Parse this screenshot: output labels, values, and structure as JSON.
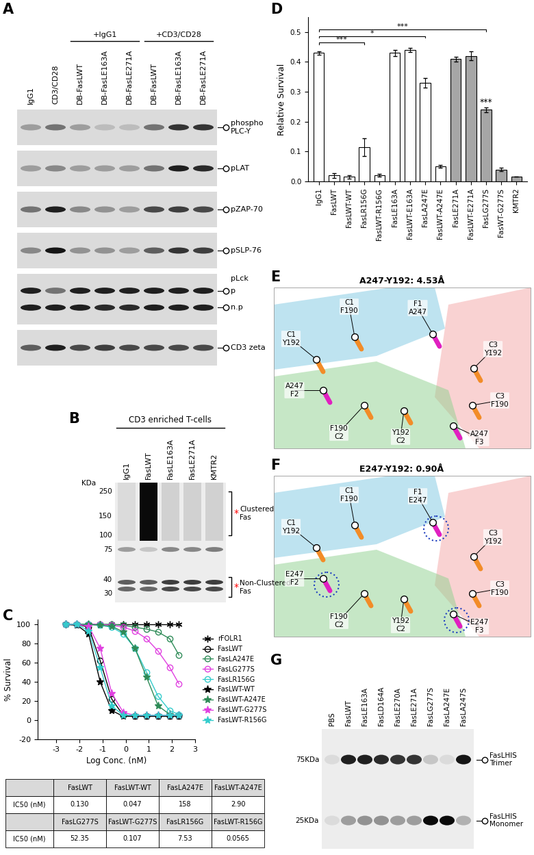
{
  "panel_letters": [
    "A",
    "B",
    "C",
    "D",
    "E",
    "F",
    "G"
  ],
  "A": {
    "lanes": [
      "IgG1",
      "CD3/CD28",
      "DB-FasLWT",
      "DB-FasLE163A",
      "DB-FasLE271A",
      "DB-FasLWT",
      "DB-FasLE163A",
      "DB-FasLE271A"
    ],
    "groups": [
      {
        "label": "+IgG1",
        "lanes": [
          2,
          4
        ]
      },
      {
        "label": "+CD3/CD28",
        "lanes": [
          5,
          7
        ]
      }
    ],
    "rows": [
      {
        "label": "phospho\nPLC-Y",
        "intensity": [
          0.3,
          0.5,
          0.3,
          0.15,
          0.15,
          0.5,
          0.8,
          0.8
        ]
      },
      {
        "label": "pLAT",
        "intensity": [
          0.3,
          0.4,
          0.3,
          0.3,
          0.3,
          0.5,
          0.9,
          0.85
        ]
      },
      {
        "label": "pZAP-70",
        "intensity": [
          0.5,
          0.9,
          0.4,
          0.35,
          0.3,
          0.7,
          0.75,
          0.7
        ]
      },
      {
        "label": "pSLP-76",
        "intensity": [
          0.4,
          0.95,
          0.35,
          0.35,
          0.3,
          0.6,
          0.8,
          0.75
        ]
      },
      {
        "label": "pLck",
        "bands": [
          {
            "name": "p",
            "intensity": [
              0.9,
              0.5,
              0.9,
              0.9,
              0.9,
              0.9,
              0.9,
              0.9
            ]
          },
          {
            "name": "n.p",
            "intensity": [
              0.9,
              0.9,
              0.9,
              0.85,
              0.85,
              0.9,
              0.9,
              0.9
            ]
          }
        ]
      },
      {
        "label": "CD3 zeta",
        "intensity": [
          0.6,
          0.9,
          0.7,
          0.75,
          0.7,
          0.7,
          0.7,
          0.7
        ]
      }
    ]
  },
  "B": {
    "title": "CD3 enriched T-cells",
    "lanes": [
      "IgG1",
      "FasLWT",
      "FasLE163A",
      "FasLE271A",
      "KMTR2"
    ],
    "marker_title": "KDa",
    "markers": [
      250,
      150,
      100,
      75,
      40,
      30
    ],
    "bands": [
      {
        "kda_hi": 300,
        "kda_lo": 90,
        "intensity": [
          0,
          1,
          0.05,
          0.05,
          0.05
        ]
      },
      {
        "kda": 75,
        "intensity": [
          0.3,
          0.1,
          0.4,
          0.4,
          0.45
        ]
      },
      {
        "kda": 38,
        "intensity": [
          0.6,
          0.6,
          0.75,
          0.75,
          0.75
        ]
      },
      {
        "kda": 33,
        "intensity": [
          0.55,
          0.55,
          0.7,
          0.7,
          0.7
        ]
      }
    ],
    "brackets": [
      {
        "label": "Clustered\nFas",
        "mark": "*",
        "kda_hi": 250,
        "kda_lo": 100
      },
      {
        "label": "Non-Clustered\nFas",
        "mark": "*",
        "kda_hi": 42,
        "kda_lo": 28
      }
    ]
  },
  "C_table": {
    "rows": [
      [
        "",
        "FasLWT",
        "FasLWT-WT",
        "FasLA247E",
        "FasLWT-A247E"
      ],
      [
        "IC50 (nM)",
        "0.130",
        "0.047",
        "158",
        "2.90"
      ],
      [
        "",
        "FasLG277S",
        "FasLWT-G277S",
        "FasLR156G",
        "FasLWT-R156G"
      ],
      [
        "IC50 (nM)",
        "52.35",
        "0.107",
        "7.53",
        "0.0565"
      ]
    ]
  },
  "chart_data": [
    {
      "type": "line",
      "xlabel": "Log Conc. (nM)",
      "ylabel": "% Survival",
      "xlim": [
        -3.8,
        3
      ],
      "xticks": [
        -3,
        -2,
        -1,
        0,
        1,
        2,
        3
      ],
      "ylim": [
        -20,
        105
      ],
      "yticks": [
        -20,
        0,
        20,
        40,
        60,
        80,
        100
      ],
      "legend": "right",
      "x": [
        -2.6,
        -2.1,
        -1.6,
        -1.1,
        -0.6,
        -0.1,
        0.4,
        0.9,
        1.4,
        1.9,
        2.3
      ],
      "series": [
        {
          "name": "rFOLR1",
          "color": "#000000",
          "marker": "asterisk",
          "values": [
            100,
            100,
            100,
            100,
            100,
            100,
            100,
            100,
            100,
            100,
            100
          ]
        },
        {
          "name": "FasLWT",
          "color": "#000000",
          "marker": "open_circle",
          "values": [
            100,
            100,
            97,
            62,
            22,
            5,
            4,
            4,
            4,
            4,
            4
          ]
        },
        {
          "name": "FasLA247E",
          "color": "#2e8b57",
          "marker": "open_circle",
          "values": [
            100,
            100,
            100,
            100,
            100,
            99,
            97,
            95,
            92,
            85,
            68
          ]
        },
        {
          "name": "FasLG277S",
          "color": "#e040e0",
          "marker": "open_circle",
          "values": [
            100,
            100,
            100,
            100,
            99,
            97,
            93,
            85,
            72,
            55,
            38
          ]
        },
        {
          "name": "FasLR156G",
          "color": "#33cccc",
          "marker": "open_circle",
          "values": [
            100,
            100,
            100,
            99,
            97,
            90,
            75,
            50,
            25,
            10,
            6
          ]
        },
        {
          "name": "FasLWT-WT",
          "color": "#000000",
          "marker": "star",
          "values": [
            100,
            99,
            90,
            40,
            10,
            4,
            4,
            4,
            4,
            4,
            4
          ]
        },
        {
          "name": "FasLWT-A247E",
          "color": "#2e8b57",
          "marker": "star",
          "values": [
            100,
            100,
            100,
            99,
            98,
            92,
            75,
            45,
            15,
            6,
            5
          ]
        },
        {
          "name": "FasLWT-G277S",
          "color": "#e040e0",
          "marker": "star",
          "values": [
            100,
            100,
            98,
            75,
            28,
            8,
            5,
            5,
            5,
            5,
            5
          ]
        },
        {
          "name": "FasLWT-R156G",
          "color": "#33cccc",
          "marker": "star",
          "values": [
            100,
            100,
            93,
            55,
            15,
            5,
            5,
            5,
            5,
            5,
            5
          ]
        }
      ]
    },
    {
      "type": "bar",
      "ylabel": "Relative Survival",
      "ylim": [
        0,
        0.55
      ],
      "yticks": [
        0.0,
        0.1,
        0.2,
        0.3,
        0.4,
        0.5
      ],
      "categories": [
        "IgG1",
        "FasLWT",
        "FasLWT-WT",
        "FasLR156G",
        "FasLWT-R156G",
        "FasLE163A",
        "FasLWT-E163A",
        "FasLA247E",
        "FasLWT-A247E",
        "FasLE271A",
        "FasLWT-E271A",
        "FasLG277S",
        "FasWT-G277S",
        "KMTR2"
      ],
      "values": [
        0.43,
        0.02,
        0.015,
        0.115,
        0.02,
        0.43,
        0.44,
        0.33,
        0.05,
        0.41,
        0.42,
        0.24,
        0.04,
        0.015
      ],
      "errors": [
        0.005,
        0.008,
        0.005,
        0.03,
        0.005,
        0.01,
        0.008,
        0.015,
        0.005,
        0.008,
        0.015,
        0.008,
        0.005,
        0.0
      ],
      "colors": [
        "#ffffff",
        "#ffffff",
        "#ffffff",
        "#ffffff",
        "#ffffff",
        "#ffffff",
        "#ffffff",
        "#ffffff",
        "#ffffff",
        "#a6a6a6",
        "#a6a6a6",
        "#a6a6a6",
        "#a6a6a6",
        "#a6a6a6"
      ],
      "annotations": [
        {
          "from": "IgG1",
          "to": "FasLR156G",
          "label": "***"
        },
        {
          "from": "IgG1",
          "to": "FasLA247E",
          "label": "*"
        },
        {
          "from": "IgG1",
          "to": "FasLG277S",
          "label": "***"
        },
        {
          "at": "FasLG277S",
          "label": "***"
        }
      ]
    }
  ],
  "structures": [
    {
      "title": "A247-Y192: 4.53Å",
      "residues": [
        "C1\nY192",
        "C1\nF190",
        "F1\nA247",
        "C3\nY192",
        "A247\nF2",
        "C3\nF190",
        "F190\nC2",
        "Y192\nC2",
        "A247\nF3"
      ]
    },
    {
      "title": "E247-Y192: 0.90Å",
      "residues": [
        "C1\nY192",
        "C1\nF190",
        "F1\nE247",
        "C3\nY192",
        "E247\nF2",
        "C3\nF190",
        "F190\nC2",
        "Y192\nC2",
        "E247\nF3"
      ]
    }
  ],
  "G": {
    "lanes": [
      "PBS",
      "FasLWT",
      "FasLE163A",
      "FasLD164A",
      "FasLE270A",
      "FasLE271A",
      "FasLG277S",
      "FasLA247E",
      "FasLA247S"
    ],
    "size_labels": [
      {
        "kda": 75,
        "label": "75KDa"
      },
      {
        "kda": 25,
        "label": "25KDa"
      }
    ],
    "bands": [
      {
        "kda": 75,
        "label": "FasLHIS\nTrimer",
        "intensity": [
          0.0,
          0.9,
          0.9,
          0.85,
          0.8,
          0.8,
          0.1,
          0.0,
          0.95
        ]
      },
      {
        "kda": 25,
        "label": "FasLHIS\nMonomer",
        "intensity": [
          0.0,
          0.3,
          0.35,
          0.35,
          0.3,
          0.3,
          1.0,
          1.0,
          0.2
        ]
      }
    ]
  }
}
